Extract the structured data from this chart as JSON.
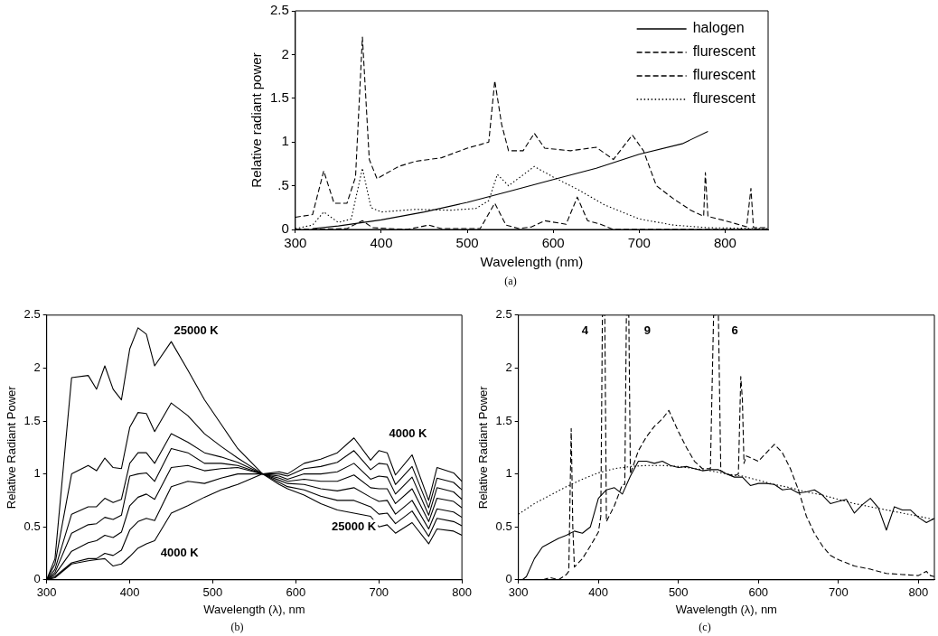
{
  "chart_data": [
    {
      "type": "line",
      "xlabel": "Wavelength (nm)",
      "ylabel": "Relative radiant power",
      "xlim": [
        300,
        850
      ],
      "xticks": [
        300,
        400,
        500,
        600,
        700,
        800
      ],
      "ylim": [
        0,
        2.5
      ],
      "yticks": [
        0,
        {
          "value": 0.5,
          "label": ".5"
        },
        1,
        1.5,
        2,
        2.5
      ],
      "grid": false,
      "legend": "top right",
      "marker": "none",
      "annotations": [
        "(a)"
      ],
      "series": [
        {
          "name": "halogen",
          "color": "#000000",
          "line_style": "solid",
          "x": [
            320,
            350,
            400,
            450,
            500,
            550,
            600,
            650,
            700,
            750,
            780
          ],
          "values": [
            0.01,
            0.04,
            0.11,
            0.2,
            0.31,
            0.44,
            0.57,
            0.7,
            0.86,
            0.98,
            1.12
          ]
        },
        {
          "name": "flurescent",
          "color": "#000000",
          "line_style": "dashed",
          "x": [
            300,
            320,
            333,
            345,
            360,
            370,
            378,
            386,
            395,
            420,
            440,
            470,
            500,
            515,
            525,
            532,
            540,
            548,
            565,
            578,
            590,
            620,
            650,
            670,
            692,
            705,
            720,
            740,
            760,
            775,
            777,
            780,
            800,
            825,
            830,
            833,
            850
          ],
          "values": [
            0.14,
            0.17,
            0.67,
            0.3,
            0.3,
            0.6,
            2.2,
            0.8,
            0.58,
            0.72,
            0.78,
            0.82,
            0.93,
            0.97,
            1.0,
            1.7,
            1.2,
            0.9,
            0.9,
            1.1,
            0.93,
            0.9,
            0.94,
            0.8,
            1.08,
            0.9,
            0.5,
            0.35,
            0.22,
            0.15,
            0.65,
            0.15,
            0.1,
            0.03,
            0.47,
            0.02,
            0.02
          ]
        },
        {
          "name": "flurescent",
          "color": "#000000",
          "line_style": "dashed",
          "x": [
            300,
            360,
            378,
            390,
            430,
            455,
            470,
            515,
            532,
            545,
            560,
            575,
            590,
            615,
            628,
            640,
            655,
            670,
            850
          ],
          "values": [
            0,
            0.01,
            0.1,
            0.02,
            0,
            0.05,
            0.01,
            0.01,
            0.3,
            0.05,
            0.01,
            0.03,
            0.1,
            0.06,
            0.37,
            0.1,
            0.06,
            0,
            0
          ]
        },
        {
          "name": "flurescent",
          "color": "#000000",
          "line_style": "dotted",
          "x": [
            300,
            320,
            333,
            350,
            365,
            378,
            388,
            400,
            440,
            480,
            510,
            525,
            535,
            548,
            578,
            600,
            630,
            660,
            700,
            740,
            780,
            850
          ],
          "values": [
            0.01,
            0.05,
            0.2,
            0.08,
            0.12,
            0.7,
            0.25,
            0.2,
            0.23,
            0.22,
            0.24,
            0.33,
            0.63,
            0.5,
            0.72,
            0.6,
            0.45,
            0.28,
            0.12,
            0.05,
            0.02,
            0.01
          ]
        }
      ]
    },
    {
      "type": "line",
      "xlabel": "Wavelength (λ), nm",
      "ylabel": "Relative Radiant Power",
      "xlim": [
        300,
        800
      ],
      "xticks": [
        300,
        400,
        500,
        600,
        700,
        800
      ],
      "ylim": [
        0,
        2.5
      ],
      "yticks": [
        0,
        0.5,
        1,
        1.5,
        2,
        2.5
      ],
      "grid": false,
      "marker": "none",
      "x": [
        300,
        310,
        330,
        350,
        360,
        370,
        380,
        390,
        400,
        410,
        420,
        430,
        450,
        470,
        490,
        510,
        530,
        560,
        580,
        590,
        610,
        630,
        650,
        670,
        690,
        700,
        710,
        720,
        740,
        760,
        770,
        790,
        800
      ],
      "annotations": [
        "(b)",
        "25000 K",
        "4000 K",
        "25000 K",
        "4000 K"
      ],
      "series": [
        {
          "color": "#000000",
          "values": [
            0,
            0.2,
            1.91,
            1.93,
            1.8,
            2.02,
            1.8,
            1.7,
            2.18,
            2.38,
            2.32,
            2.02,
            2.25,
            1.98,
            1.7,
            1.47,
            1.24,
            1.0,
            0.9,
            0.86,
            0.8,
            0.72,
            0.66,
            0.63,
            0.6,
            0.5,
            0.52,
            0.44,
            0.54,
            0.34,
            0.48,
            0.46,
            0.42
          ]
        },
        {
          "color": "#000000",
          "values": [
            0,
            0.15,
            1.0,
            1.08,
            1.03,
            1.15,
            1.06,
            1.05,
            1.44,
            1.58,
            1.57,
            1.4,
            1.67,
            1.55,
            1.38,
            1.26,
            1.15,
            1.0,
            0.92,
            0.88,
            0.85,
            0.79,
            0.75,
            0.75,
            0.69,
            0.62,
            0.63,
            0.53,
            0.65,
            0.41,
            0.58,
            0.55,
            0.51
          ]
        },
        {
          "color": "#000000",
          "values": [
            0,
            0.1,
            0.62,
            0.69,
            0.69,
            0.77,
            0.73,
            0.76,
            1.1,
            1.2,
            1.2,
            1.1,
            1.38,
            1.3,
            1.2,
            1.16,
            1.11,
            1.0,
            0.94,
            0.91,
            0.9,
            0.86,
            0.84,
            0.87,
            0.78,
            0.74,
            0.75,
            0.62,
            0.75,
            0.48,
            0.67,
            0.64,
            0.59
          ]
        },
        {
          "color": "#000000",
          "values": [
            0,
            0.07,
            0.44,
            0.52,
            0.53,
            0.59,
            0.57,
            0.61,
            0.98,
            1.0,
            1.01,
            0.93,
            1.24,
            1.2,
            1.1,
            1.1,
            1.08,
            1.0,
            0.96,
            0.93,
            0.95,
            0.93,
            0.93,
            0.99,
            0.87,
            0.86,
            0.86,
            0.72,
            0.86,
            0.55,
            0.77,
            0.74,
            0.68
          ]
        },
        {
          "color": "#000000",
          "values": [
            0,
            0.05,
            0.27,
            0.35,
            0.37,
            0.42,
            0.4,
            0.45,
            0.7,
            0.78,
            0.81,
            0.76,
            1.06,
            1.08,
            1.03,
            1.05,
            1.06,
            1.0,
            0.98,
            0.95,
            1.0,
            1.0,
            1.02,
            1.1,
            0.95,
            0.98,
            0.97,
            0.81,
            0.97,
            0.61,
            0.87,
            0.83,
            0.76
          ]
        },
        {
          "color": "#000000",
          "values": [
            0,
            0.03,
            0.16,
            0.2,
            0.2,
            0.25,
            0.23,
            0.28,
            0.47,
            0.55,
            0.58,
            0.56,
            0.88,
            0.93,
            0.91,
            0.96,
            1.0,
            1.0,
            1.0,
            0.98,
            1.05,
            1.07,
            1.11,
            1.22,
            1.04,
            1.1,
            1.09,
            0.9,
            1.07,
            0.68,
            0.96,
            0.92,
            0.85
          ]
        },
        {
          "color": "#000000",
          "values": [
            0,
            0.02,
            0.15,
            0.18,
            0.19,
            0.2,
            0.13,
            0.15,
            0.22,
            0.3,
            0.34,
            0.37,
            0.63,
            0.7,
            0.78,
            0.85,
            0.9,
            1.0,
            1.02,
            1.0,
            1.1,
            1.14,
            1.2,
            1.34,
            1.13,
            1.22,
            1.2,
            0.99,
            1.18,
            0.75,
            1.06,
            1.01,
            0.93
          ]
        }
      ]
    },
    {
      "type": "line",
      "xlabel": "Wavelength (λ), nm",
      "ylabel": "Relative Radiant Power",
      "xlim": [
        300,
        820
      ],
      "xticks": [
        300,
        400,
        500,
        600,
        700,
        800
      ],
      "ylim": [
        0,
        2.5
      ],
      "yticks": [
        0,
        0.5,
        1,
        1.5,
        2,
        2.5
      ],
      "grid": false,
      "marker": "none",
      "annotations": [
        "(c)",
        "4",
        "9",
        "6"
      ],
      "series": [
        {
          "color": "#000000",
          "line_style": "solid",
          "x": [
            300,
            305,
            310,
            320,
            330,
            340,
            350,
            360,
            370,
            380,
            390,
            400,
            410,
            420,
            430,
            440,
            450,
            460,
            470,
            480,
            490,
            500,
            510,
            520,
            530,
            540,
            550,
            560,
            570,
            580,
            590,
            600,
            610,
            620,
            630,
            640,
            650,
            660,
            670,
            680,
            690,
            700,
            710,
            720,
            730,
            740,
            750,
            760,
            770,
            780,
            790,
            800,
            810,
            820
          ],
          "values": [
            0,
            0,
            0.03,
            0.2,
            0.31,
            0.35,
            0.39,
            0.42,
            0.46,
            0.44,
            0.5,
            0.77,
            0.85,
            0.87,
            0.81,
            0.98,
            1.12,
            1.12,
            1.1,
            1.12,
            1.08,
            1.06,
            1.07,
            1.05,
            1.03,
            1.04,
            1.04,
            1.0,
            0.97,
            0.97,
            0.89,
            0.91,
            0.91,
            0.9,
            0.85,
            0.86,
            0.82,
            0.83,
            0.85,
            0.8,
            0.72,
            0.74,
            0.76,
            0.63,
            0.71,
            0.77,
            0.68,
            0.47,
            0.69,
            0.66,
            0.66,
            0.59,
            0.54,
            0.58
          ]
        },
        {
          "color": "#000000",
          "line_style": "dashed",
          "x": [
            300,
            330,
            340,
            350,
            360,
            363,
            366,
            368,
            370,
            380,
            390,
            400,
            403,
            405,
            408,
            410,
            420,
            430,
            433,
            435,
            438,
            440,
            450,
            460,
            470,
            480,
            488,
            500,
            510,
            520,
            530,
            540,
            544,
            550,
            553,
            560,
            570,
            575,
            578,
            580,
            582,
            585,
            600,
            620,
            630,
            640,
            650,
            660,
            670,
            680,
            690,
            700,
            720,
            740,
            760,
            780,
            800,
            810,
            815,
            820
          ],
          "values": [
            0,
            0,
            0.02,
            0,
            0.05,
            0.08,
            1.43,
            0.5,
            0.12,
            0.2,
            0.32,
            0.45,
            0.6,
            2.5,
            2.5,
            0.55,
            0.7,
            0.9,
            0.9,
            2.5,
            2.5,
            1.0,
            1.22,
            1.35,
            1.45,
            1.52,
            1.6,
            1.4,
            1.25,
            1.12,
            1.05,
            1.05,
            2.5,
            2.5,
            1.03,
            1.0,
            0.98,
            1.0,
            1.92,
            1.7,
            1.1,
            1.17,
            1.12,
            1.28,
            1.2,
            1.05,
            0.85,
            0.6,
            0.44,
            0.32,
            0.23,
            0.19,
            0.13,
            0.1,
            0.06,
            0.05,
            0.04,
            0.08,
            0.04,
            0.03
          ]
        },
        {
          "color": "#000000",
          "line_style": "dotted",
          "x": [
            300,
            320,
            340,
            360,
            380,
            400,
            420,
            440,
            460,
            480,
            500,
            520,
            540,
            560,
            580,
            600,
            620,
            640,
            660,
            680,
            700,
            720,
            740,
            760,
            780,
            800,
            820
          ],
          "values": [
            0.62,
            0.72,
            0.8,
            0.88,
            0.95,
            1.01,
            1.05,
            1.07,
            1.08,
            1.08,
            1.07,
            1.05,
            1.03,
            1.0,
            0.98,
            0.94,
            0.9,
            0.87,
            0.83,
            0.8,
            0.76,
            0.72,
            0.69,
            0.66,
            0.63,
            0.6,
            0.57
          ]
        }
      ]
    }
  ]
}
